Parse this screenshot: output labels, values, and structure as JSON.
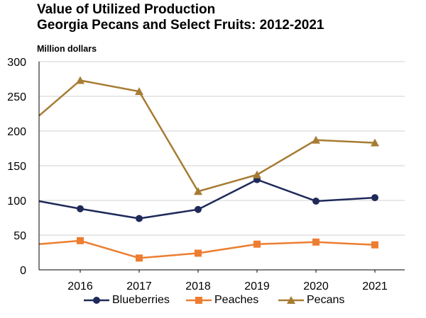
{
  "chart_data": {
    "type": "line",
    "title": "Value of Utilized Production",
    "subtitle": "Georgia Pecans and Select Fruits: 2012-2021",
    "ylabel": "Million dollars",
    "xlabel": "",
    "ylim": [
      0,
      300
    ],
    "yticks": [
      0,
      50,
      100,
      150,
      200,
      250,
      300
    ],
    "categories": [
      "2016",
      "2017",
      "2018",
      "2019",
      "2020",
      "2021"
    ],
    "grid": true,
    "legend_position": "bottom",
    "series": [
      {
        "name": "Blueberries",
        "color": "#1f2a5a",
        "marker": "circle",
        "start_value": 99,
        "values": [
          88,
          74,
          87,
          130,
          99,
          104
        ]
      },
      {
        "name": "Peaches",
        "color": "#ed7d31",
        "marker": "square",
        "start_value": 37,
        "values": [
          42,
          17,
          24,
          37,
          40,
          36
        ]
      },
      {
        "name": "Pecans",
        "color": "#a67c33",
        "marker": "triangle",
        "start_value": 222,
        "values": [
          273,
          257,
          113,
          137,
          187,
          183
        ]
      }
    ]
  }
}
